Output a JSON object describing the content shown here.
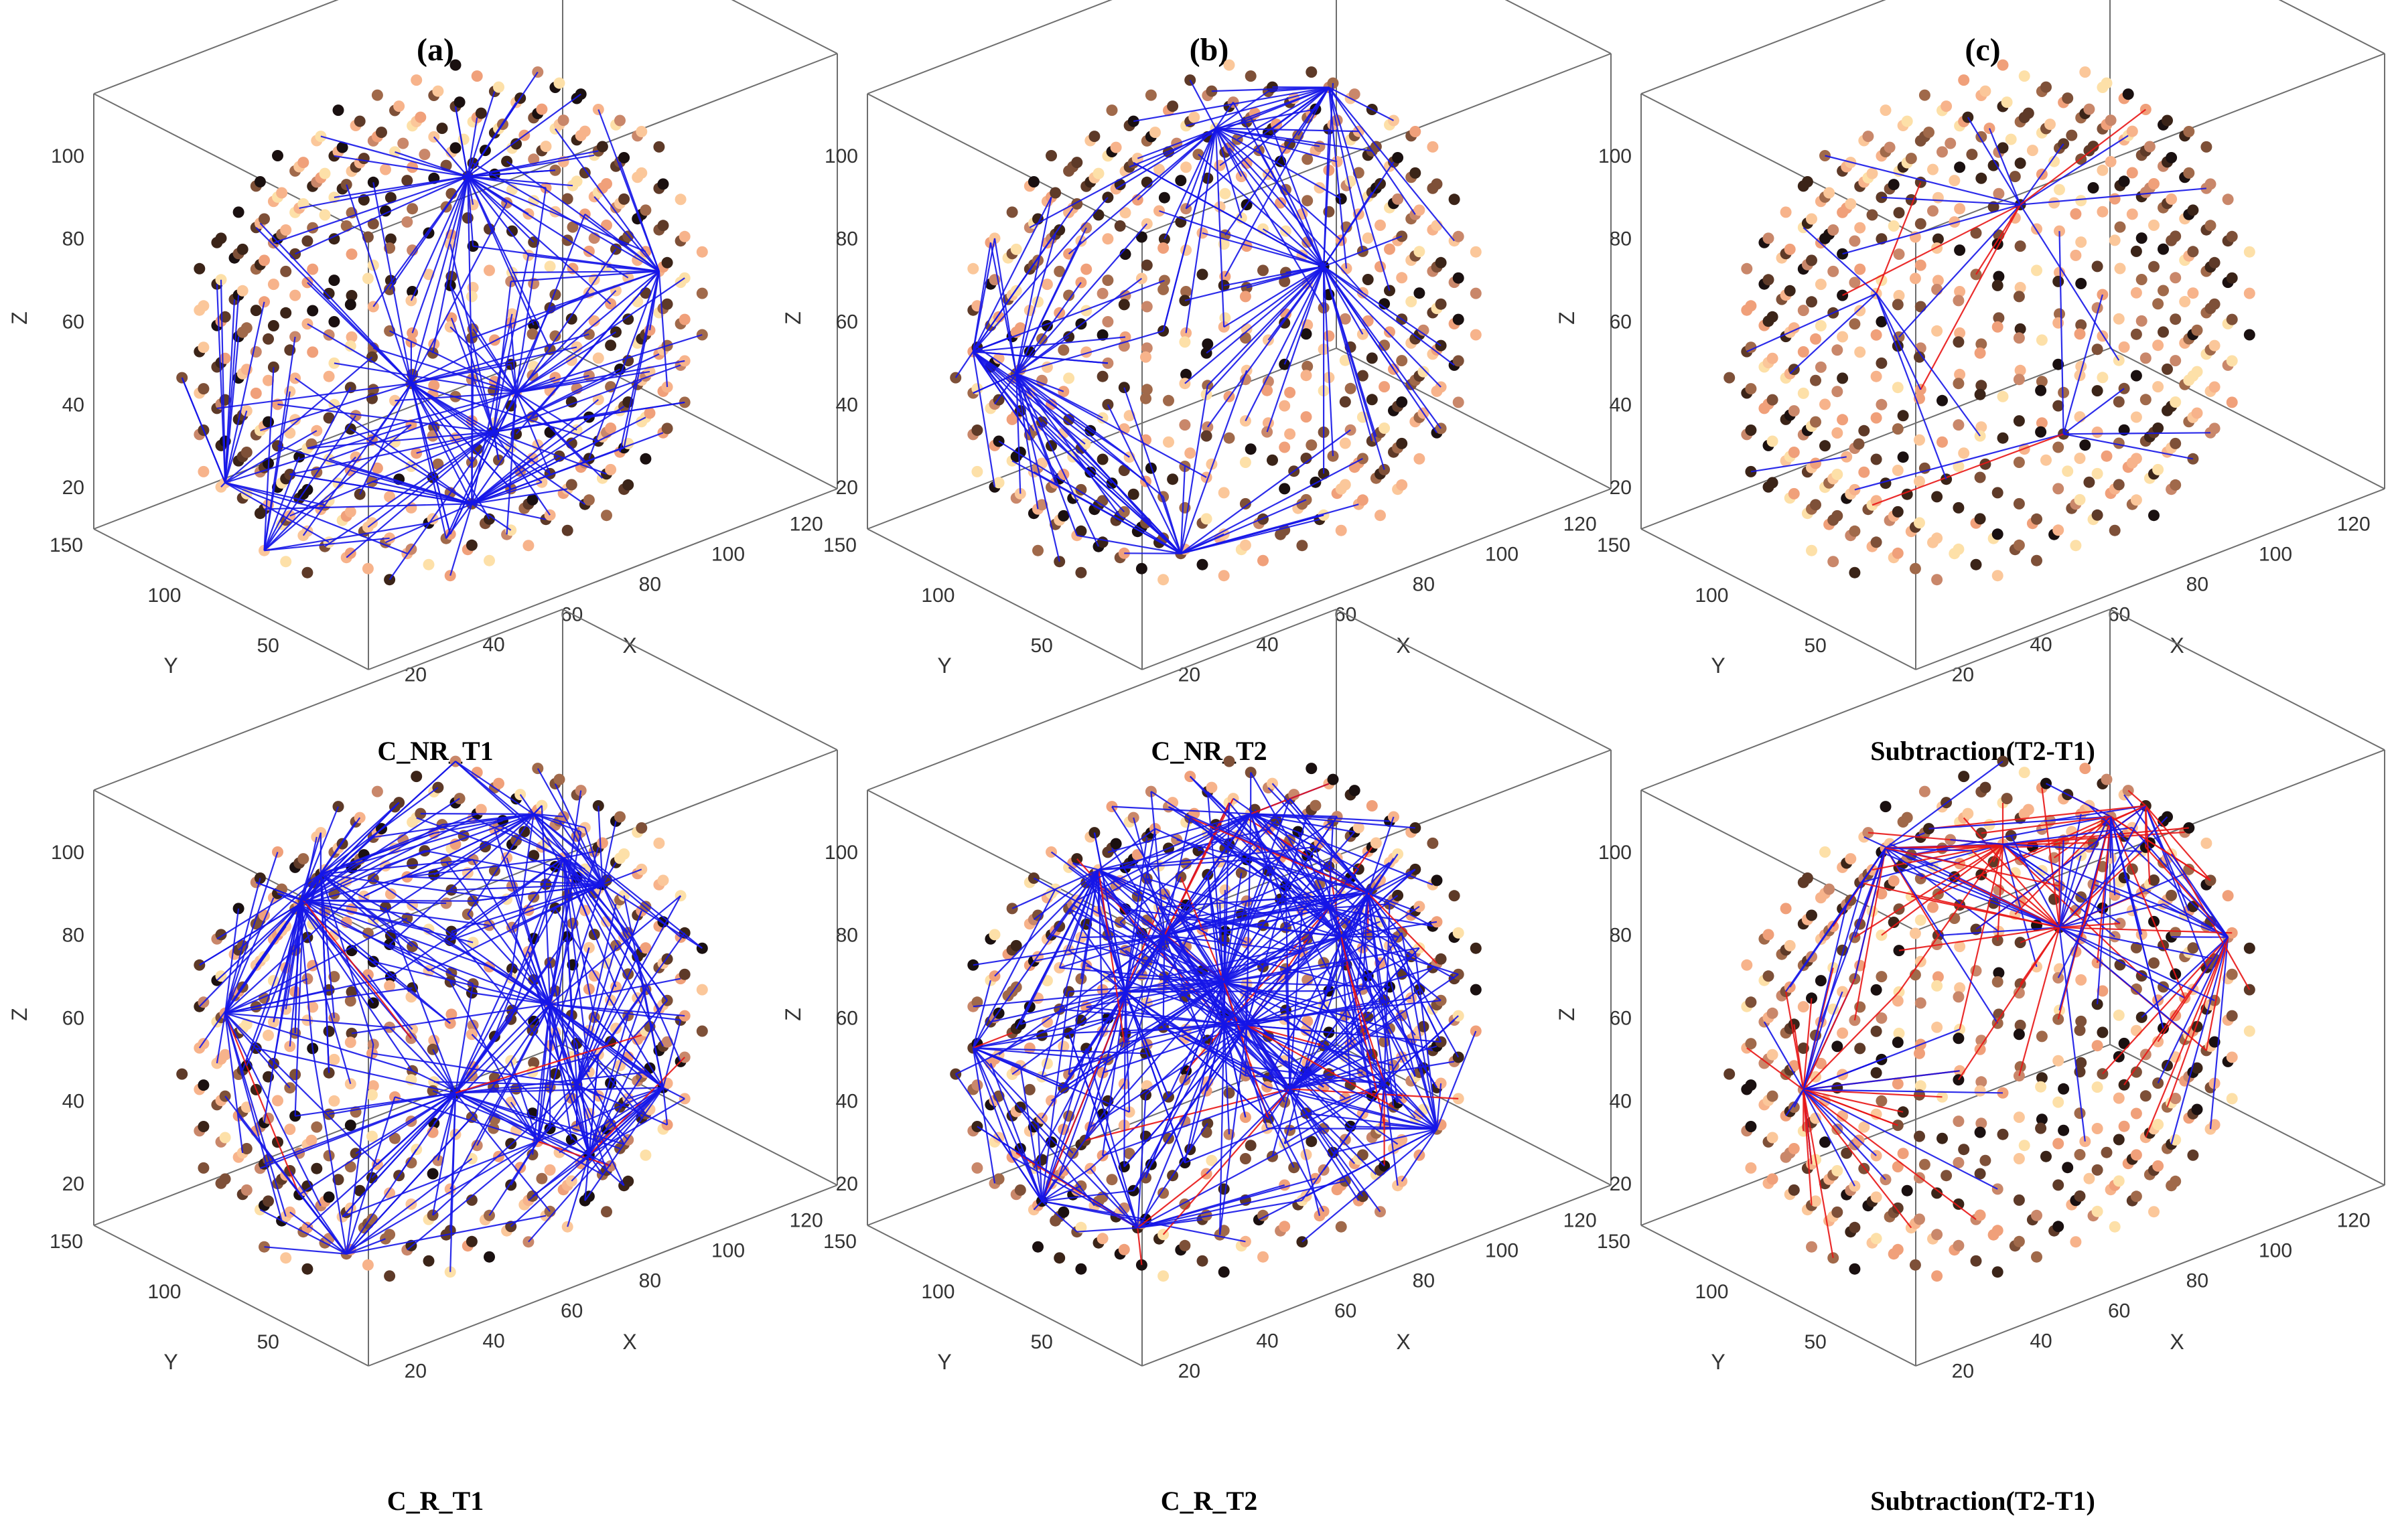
{
  "figure": {
    "column_labels": [
      "(a)",
      "(b)",
      "(c)"
    ]
  },
  "colors": {
    "positive_edge": "#1515e8",
    "negative_edge": "#e81515",
    "node_palette": [
      "#1a1010",
      "#3b2418",
      "#5e3a28",
      "#7e5038",
      "#a0694a",
      "#c9876a",
      "#f0a07a",
      "#f7b38b",
      "#fbc79a",
      "#fde0a8"
    ]
  },
  "chart_data": [
    {
      "type": "scatter",
      "plot_kind": "3d-brain-network",
      "title": "C_NR_T1",
      "column": "(a)",
      "xlabel": "X",
      "ylabel": "Y",
      "zlabel": "Z",
      "xticks": [
        20,
        40,
        60,
        80,
        100,
        120
      ],
      "yticks": [
        50,
        100,
        150
      ],
      "zticks": [
        20,
        40,
        60,
        80,
        100
      ],
      "xlim": [
        10,
        130
      ],
      "ylim": [
        10,
        150
      ],
      "zlim": [
        10,
        115
      ],
      "edge_density": 0.55,
      "negative_edge_fraction": 0.0
    },
    {
      "type": "scatter",
      "plot_kind": "3d-brain-network",
      "title": "C_NR_T2",
      "column": "(b)",
      "xlabel": "X",
      "ylabel": "Y",
      "zlabel": "Z",
      "xticks": [
        20,
        40,
        60,
        80,
        100,
        120
      ],
      "yticks": [
        50,
        100,
        150
      ],
      "zticks": [
        20,
        40,
        60,
        80,
        100
      ],
      "xlim": [
        10,
        130
      ],
      "ylim": [
        10,
        150
      ],
      "zlim": [
        10,
        115
      ],
      "edge_density": 0.45,
      "negative_edge_fraction": 0.0
    },
    {
      "type": "scatter",
      "plot_kind": "3d-brain-network",
      "title": "Subtraction(T2-T1)",
      "column": "(c)",
      "xlabel": "X",
      "ylabel": "Y",
      "zlabel": "Z",
      "xticks": [
        20,
        40,
        60,
        80,
        100,
        120
      ],
      "yticks": [
        50,
        100,
        150
      ],
      "zticks": [
        20,
        40,
        60,
        80,
        100
      ],
      "xlim": [
        10,
        130
      ],
      "ylim": [
        10,
        150
      ],
      "zlim": [
        10,
        115
      ],
      "edge_density": 0.06,
      "negative_edge_fraction": 0.5
    },
    {
      "type": "scatter",
      "plot_kind": "3d-brain-network",
      "title": "C_R_T1",
      "column": "(a)",
      "xlabel": "X",
      "ylabel": "Y",
      "zlabel": "Z",
      "xticks": [
        20,
        40,
        60,
        80,
        100,
        120
      ],
      "yticks": [
        50,
        100,
        150
      ],
      "zticks": [
        20,
        40,
        60,
        80,
        100
      ],
      "xlim": [
        10,
        130
      ],
      "ylim": [
        10,
        150
      ],
      "zlim": [
        10,
        115
      ],
      "edge_density": 1.0,
      "negative_edge_fraction": 0.02
    },
    {
      "type": "scatter",
      "plot_kind": "3d-brain-network",
      "title": "C_R_T2",
      "column": "(b)",
      "xlabel": "X",
      "ylabel": "Y",
      "zlabel": "Z",
      "xticks": [
        20,
        40,
        60,
        80,
        100,
        120
      ],
      "yticks": [
        50,
        100,
        150
      ],
      "zticks": [
        20,
        40,
        60,
        80,
        100
      ],
      "xlim": [
        10,
        130
      ],
      "ylim": [
        10,
        150
      ],
      "zlim": [
        10,
        115
      ],
      "edge_density": 1.15,
      "negative_edge_fraction": 0.06
    },
    {
      "type": "scatter",
      "plot_kind": "3d-brain-network",
      "title": "Subtraction(T2-T1)",
      "column": "(c)",
      "xlabel": "X",
      "ylabel": "Y",
      "zlabel": "Z",
      "xticks": [
        20,
        40,
        60,
        80,
        100,
        120
      ],
      "yticks": [
        50,
        100,
        150
      ],
      "zticks": [
        20,
        40,
        60,
        80,
        100
      ],
      "xlim": [
        10,
        130
      ],
      "ylim": [
        10,
        150
      ],
      "zlim": [
        10,
        115
      ],
      "edge_density": 0.5,
      "negative_edge_fraction": 0.5
    }
  ]
}
